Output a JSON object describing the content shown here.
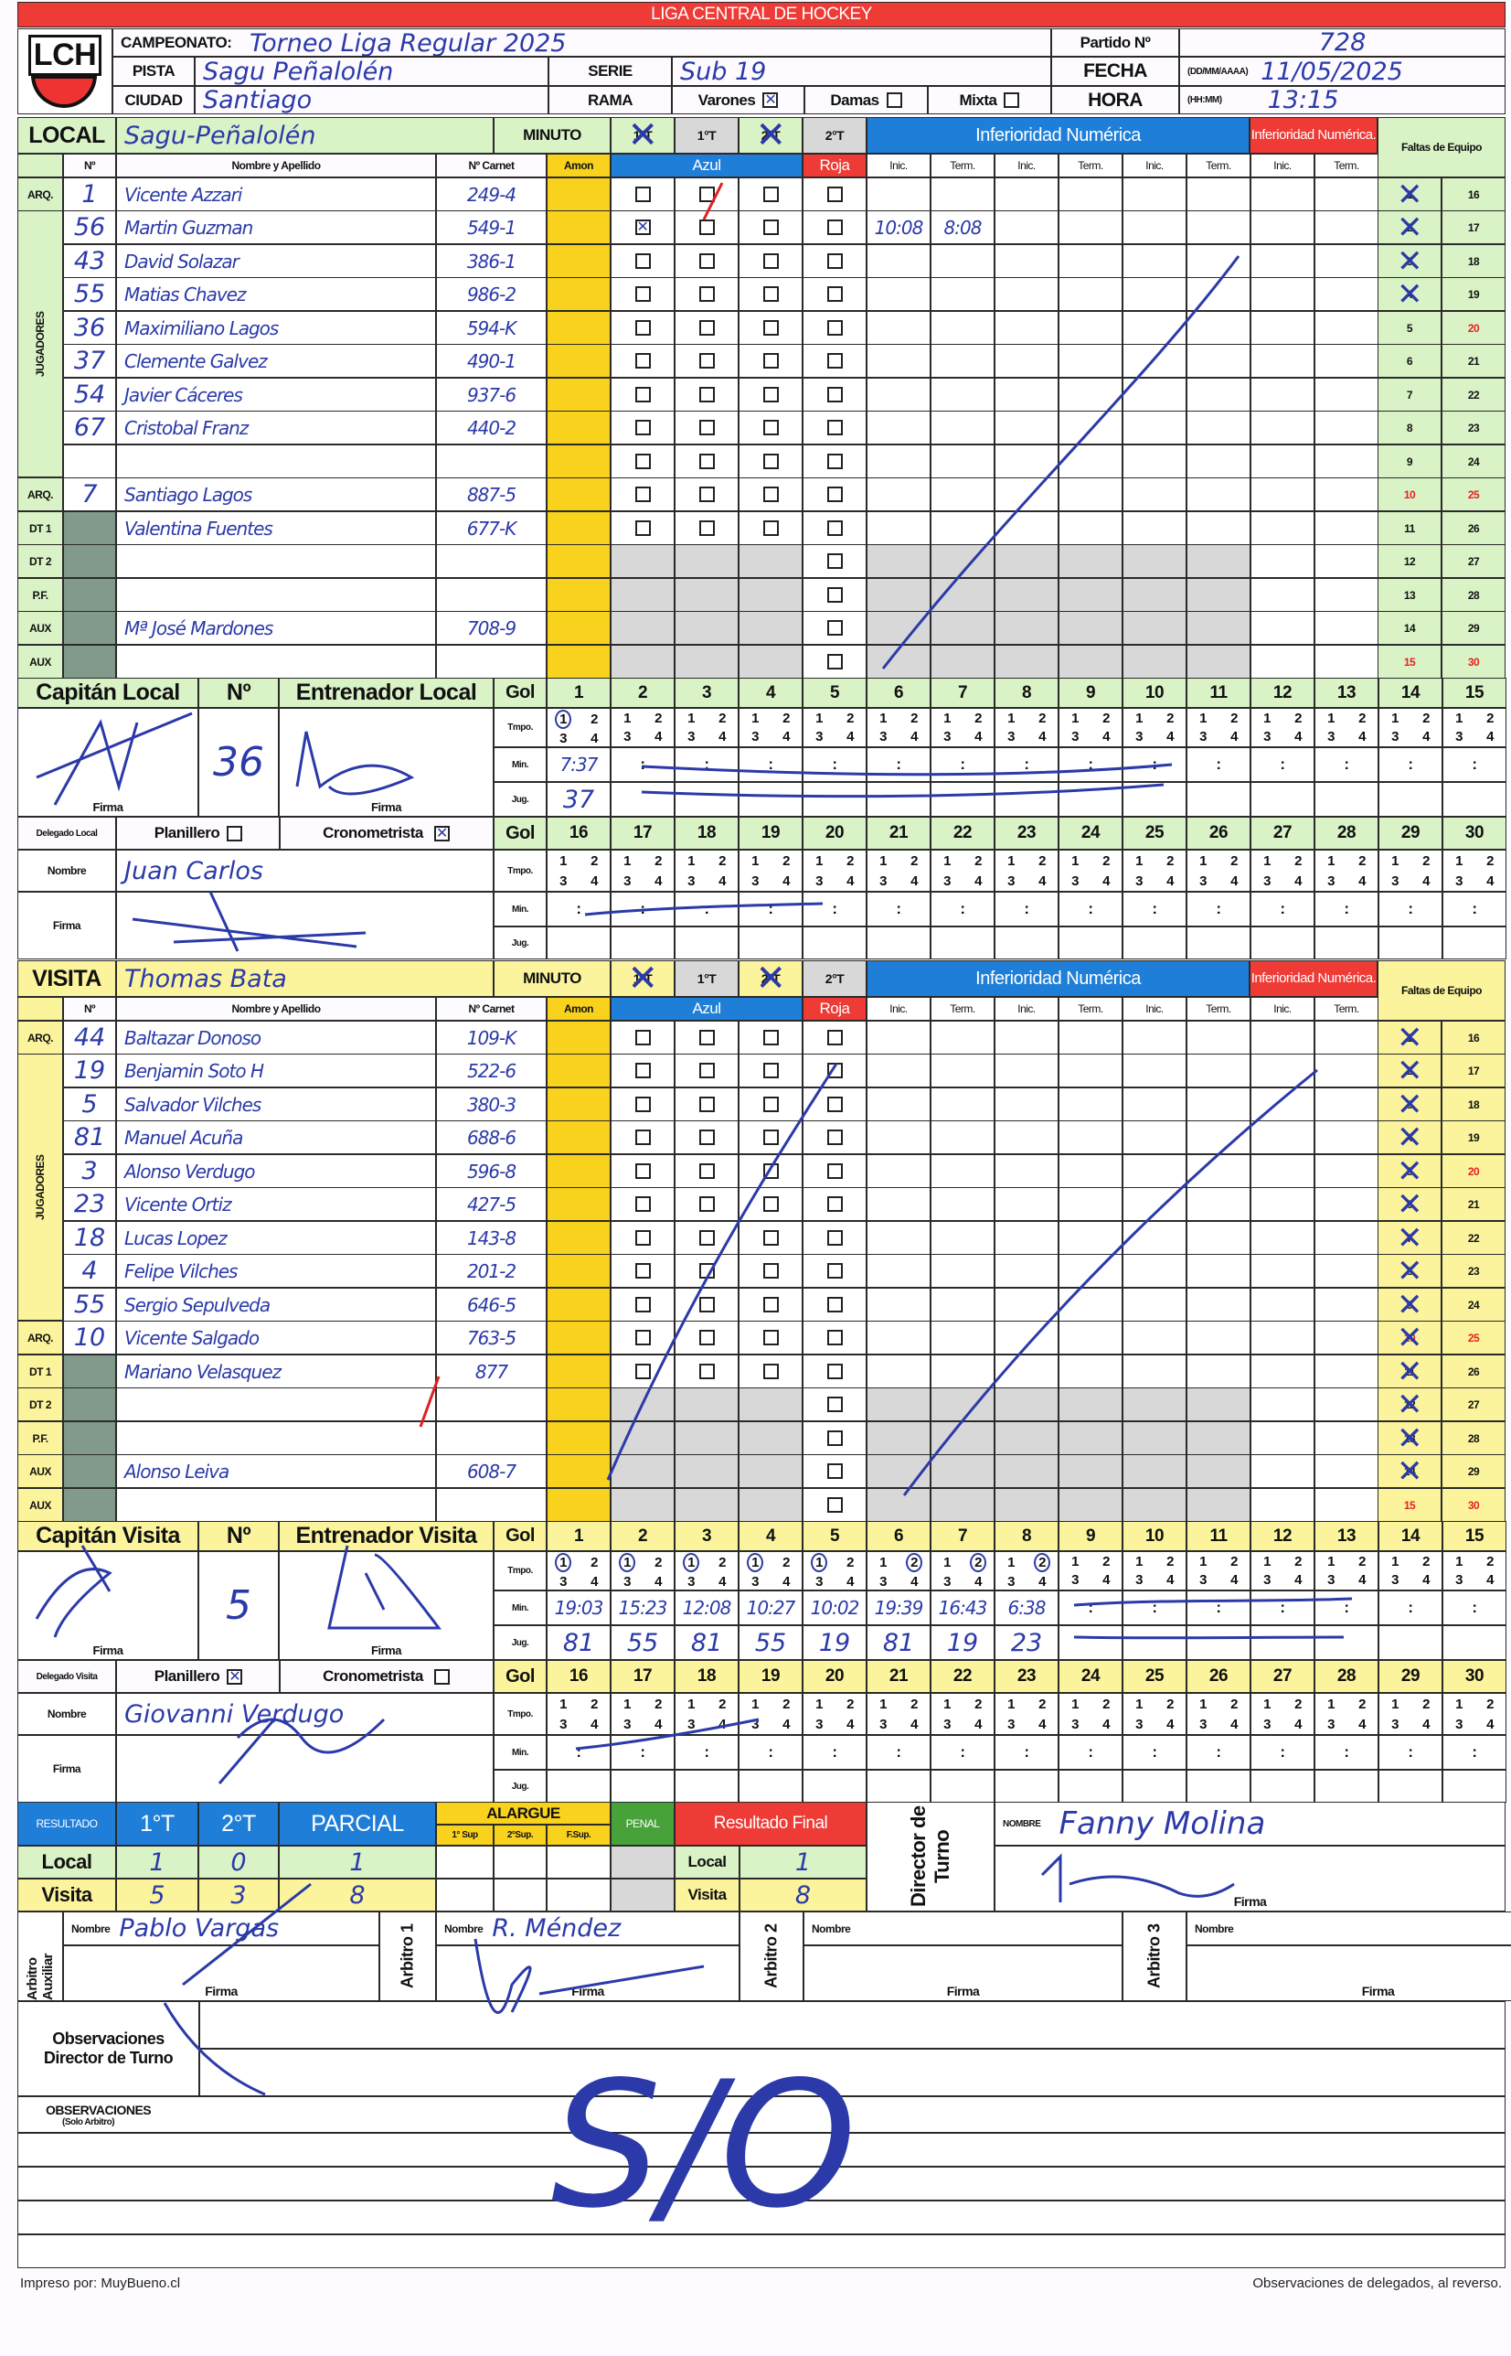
{
  "header": {
    "league_title": "LIGA CENTRAL DE HOCKEY",
    "logo_text": "LCH",
    "campeonato_label": "CAMPEONATO:",
    "campeonato": "Torneo Liga Regular 2025",
    "partido_label": "Partido Nº",
    "partido": "728",
    "pista_label": "PISTA",
    "pista": "Sagu Peñalolén",
    "serie_label": "SERIE",
    "serie": "Sub 19",
    "fecha_label": "FECHA",
    "fecha_format": "(DD/MM/AAAA)",
    "fecha": "11/05/2025",
    "ciudad_label": "CIUDAD",
    "ciudad": "Santiago",
    "rama_label": "RAMA",
    "rama_options": [
      {
        "label": "Varones",
        "checked": true
      },
      {
        "label": "Damas",
        "checked": false
      },
      {
        "label": "Mixta",
        "checked": false
      }
    ],
    "hora_label": "HORA",
    "hora_format": "(HH:MM)",
    "hora": "13:15"
  },
  "labels": {
    "minuto": "MINUTO",
    "inferioridad": "Inferioridad Numérica",
    "inferioridad_red": "Inferioridad Numérica.",
    "faltas": "Faltas de Equipo",
    "num": "Nº",
    "nombre_apellido": "Nombre y Apellido",
    "carnet": "Nº Carnet",
    "amon": "Amon",
    "azul": "Azul",
    "roja": "Roja",
    "inf_cols": [
      "Inic.",
      "Term.",
      "Inic.",
      "Term.",
      "Inic.",
      "Term.",
      "Inic.",
      "Term."
    ],
    "jugadores": "JUGADORES",
    "gol": "Gol",
    "tmpo": "Tmpo.",
    "min": "Min.",
    "jug": "Jug.",
    "firma": "Firma",
    "nombre": "Nombre",
    "planillero": "Planillero",
    "cronometrista": "Cronometrista",
    "tmpo_digits": [
      "1",
      "2",
      "3",
      "4"
    ],
    "min_placeholder": ":",
    "goal_numbers_a": [
      "1",
      "2",
      "3",
      "4",
      "5",
      "6",
      "7",
      "8",
      "9",
      "10",
      "11",
      "12",
      "13",
      "14",
      "15"
    ],
    "goal_numbers_b": [
      "16",
      "17",
      "18",
      "19",
      "20",
      "21",
      "22",
      "23",
      "24",
      "25",
      "26",
      "27",
      "28",
      "29",
      "30"
    ],
    "fouls_left": [
      "1",
      "2",
      "3",
      "4",
      "5",
      "6",
      "7",
      "8",
      "9",
      "10",
      "11",
      "12",
      "13",
      "14",
      "15"
    ],
    "fouls_right": [
      "16",
      "17",
      "18",
      "19",
      "20",
      "21",
      "22",
      "23",
      "24",
      "25",
      "26",
      "27",
      "28",
      "29",
      "30"
    ]
  },
  "local": {
    "label": "LOCAL",
    "team": "Sagu-Peñalolén",
    "periods": [
      {
        "label": "1°T",
        "crossed": true
      },
      {
        "label": "1°T",
        "crossed": false
      },
      {
        "label": "2°T",
        "crossed": true
      },
      {
        "label": "2°T",
        "crossed": false
      }
    ],
    "players": [
      {
        "role": "ARQ.",
        "num": "1",
        "name": "Vicente Azzari",
        "carnet": "249-4",
        "azul": [
          false,
          false,
          false
        ],
        "roja": false
      },
      {
        "role": "",
        "num": "56",
        "name": "Martin Guzman",
        "carnet": "549-1",
        "azul": [
          true,
          false,
          false
        ],
        "roja": false,
        "inf": [
          "10:08",
          "8:08",
          "",
          "",
          "",
          "",
          "",
          ""
        ]
      },
      {
        "role": "",
        "num": "43",
        "name": "David Solazar",
        "carnet": "386-1",
        "azul": [
          false,
          false,
          false
        ],
        "roja": false
      },
      {
        "role": "",
        "num": "55",
        "name": "Matias Chavez",
        "carnet": "986-2",
        "azul": [
          false,
          false,
          false
        ],
        "roja": false
      },
      {
        "role": "",
        "num": "36",
        "name": "Maximiliano Lagos",
        "carnet": "594-K",
        "azul": [
          false,
          false,
          false
        ],
        "roja": false
      },
      {
        "role": "",
        "num": "37",
        "name": "Clemente Galvez",
        "carnet": "490-1",
        "azul": [
          false,
          false,
          false
        ],
        "roja": false
      },
      {
        "role": "",
        "num": "54",
        "name": "Javier Cáceres",
        "carnet": "937-6",
        "azul": [
          false,
          false,
          false
        ],
        "roja": false
      },
      {
        "role": "",
        "num": "67",
        "name": "Cristobal Franz",
        "carnet": "440-2",
        "azul": [
          false,
          false,
          false
        ],
        "roja": false
      },
      {
        "role": "",
        "num": "",
        "name": "",
        "carnet": "",
        "azul": [
          false,
          false,
          false
        ],
        "roja": false
      },
      {
        "role": "ARQ.",
        "num": "7",
        "name": "Santiago Lagos",
        "carnet": "887-5",
        "azul": [
          false,
          false,
          false
        ],
        "roja": false
      },
      {
        "role": "DT 1",
        "num": "",
        "name": "Valentina Fuentes",
        "carnet": "677-K",
        "azul": [
          false,
          false,
          false
        ],
        "roja": false
      },
      {
        "role": "DT 2",
        "num": "",
        "name": "",
        "carnet": "",
        "roja": false
      },
      {
        "role": "P.F.",
        "num": "",
        "name": "",
        "carnet": "",
        "roja": false
      },
      {
        "role": "AUX",
        "num": "",
        "name": "Mª José Mardones",
        "carnet": "708-9",
        "roja": false
      },
      {
        "role": "AUX",
        "num": "",
        "name": "",
        "carnet": "",
        "roja": false
      }
    ],
    "fouls_crossed": [
      1,
      2,
      3,
      4
    ],
    "captain_label": "Capitán Local",
    "captain_number": "36",
    "coach_label": "Entrenador Local",
    "delegado_label": "Delegado Local",
    "delegado_nombre": "Juan Carlos",
    "planillero_checked": false,
    "cronometrista_checked": true,
    "goals": [
      {
        "period": 1,
        "min": "7:37",
        "player": "37"
      }
    ]
  },
  "visita": {
    "label": "VISITA",
    "team": "Thomas Bata",
    "periods": [
      {
        "label": "1°T",
        "crossed": true
      },
      {
        "label": "1°T",
        "crossed": false
      },
      {
        "label": "2°T",
        "crossed": true
      },
      {
        "label": "2°T",
        "crossed": false
      }
    ],
    "players": [
      {
        "role": "ARQ.",
        "num": "44",
        "name": "Baltazar Donoso",
        "carnet": "109-K",
        "azul": [
          false,
          false,
          false
        ],
        "roja": false
      },
      {
        "role": "",
        "num": "19",
        "name": "Benjamin Soto H",
        "carnet": "522-6",
        "azul": [
          false,
          false,
          false
        ],
        "roja": false
      },
      {
        "role": "",
        "num": "5",
        "name": "Salvador Vilches",
        "carnet": "380-3",
        "azul": [
          false,
          false,
          false
        ],
        "roja": false
      },
      {
        "role": "",
        "num": "81",
        "name": "Manuel Acuña",
        "carnet": "688-6",
        "azul": [
          false,
          false,
          false
        ],
        "roja": false
      },
      {
        "role": "",
        "num": "3",
        "name": "Alonso Verdugo",
        "carnet": "596-8",
        "azul": [
          false,
          false,
          false
        ],
        "roja": false
      },
      {
        "role": "",
        "num": "23",
        "name": "Vicente Ortiz",
        "carnet": "427-5",
        "azul": [
          false,
          false,
          false
        ],
        "roja": false
      },
      {
        "role": "",
        "num": "18",
        "name": "Lucas Lopez",
        "carnet": "143-8",
        "azul": [
          false,
          false,
          false
        ],
        "roja": false
      },
      {
        "role": "",
        "num": "4",
        "name": "Felipe Vilches",
        "carnet": "201-2",
        "azul": [
          false,
          false,
          false
        ],
        "roja": false
      },
      {
        "role": "",
        "num": "55",
        "name": "Sergio Sepulveda",
        "carnet": "646-5",
        "azul": [
          false,
          false,
          false
        ],
        "roja": false
      },
      {
        "role": "ARQ.",
        "num": "10",
        "name": "Vicente Salgado",
        "carnet": "763-5",
        "azul": [
          false,
          false,
          false
        ],
        "roja": false
      },
      {
        "role": "DT 1",
        "num": "",
        "name": "Mariano Velasquez",
        "carnet": "877",
        "azul": [
          false,
          false,
          false
        ],
        "roja": false
      },
      {
        "role": "DT 2",
        "num": "",
        "name": "",
        "carnet": "",
        "roja": false
      },
      {
        "role": "P.F.",
        "num": "",
        "name": "",
        "carnet": "",
        "roja": false
      },
      {
        "role": "AUX",
        "num": "",
        "name": "Alonso Leiva",
        "carnet": "608-7",
        "roja": false
      },
      {
        "role": "AUX",
        "num": "",
        "name": "",
        "carnet": "",
        "roja": false
      }
    ],
    "fouls_crossed": [
      1,
      2,
      3,
      4,
      5,
      6,
      7,
      8,
      9,
      10,
      11,
      12,
      13,
      14
    ],
    "captain_label": "Capitán Visita",
    "captain_number": "5",
    "coach_label": "Entrenador Visita",
    "delegado_label": "Delegado Visita",
    "delegado_nombre": "Giovanni Verdugo",
    "planillero_checked": true,
    "cronometrista_checked": false,
    "goals": [
      {
        "period": 1,
        "min": "19:03",
        "player": "81"
      },
      {
        "period": 1,
        "min": "15:23",
        "player": "55"
      },
      {
        "period": 1,
        "min": "12:08",
        "player": "81"
      },
      {
        "period": 1,
        "min": "10:27",
        "player": "55"
      },
      {
        "period": 1,
        "min": "10:02",
        "player": "19"
      },
      {
        "period": 2,
        "min": "19:39",
        "player": "81"
      },
      {
        "period": 2,
        "min": "16:43",
        "player": "19"
      },
      {
        "period": 2,
        "min": "6:38",
        "player": "23"
      }
    ]
  },
  "result": {
    "resultado_label": "RESULTADO",
    "t1_label": "1°T",
    "t2_label": "2°T",
    "parcial_label": "PARCIAL",
    "alargue_label": "ALARGUE",
    "sup1_label": "1° Sup",
    "sup2_label": "2°Sup.",
    "fsup_label": "F.Sup.",
    "penal_label": "PENAL",
    "final_label": "Resultado Final",
    "local_label": "Local",
    "visita_label": "Visita",
    "local": {
      "t1": "1",
      "t2": "0",
      "parcial": "1",
      "final": "1"
    },
    "visita": {
      "t1": "5",
      "t2": "3",
      "parcial": "8",
      "final": "8"
    },
    "director_label": "Director de Turno",
    "director_nombre_label": "NOMBRE",
    "director_nombre": "Fanny Molina",
    "director_firma_label": "Firma"
  },
  "referees": [
    {
      "label": "Arbitro Auxiliar",
      "nombre_label": "Nombre",
      "nombre": "Pablo Vargas",
      "firma_label": "Firma"
    },
    {
      "label": "Arbitro 1",
      "nombre_label": "Nombre",
      "nombre": "R. Méndez",
      "firma_label": "Firma"
    },
    {
      "label": "Arbitro 2",
      "nombre_label": "Nombre",
      "nombre": "",
      "firma_label": "Firma"
    },
    {
      "label": "Arbitro 3",
      "nombre_label": "Nombre",
      "nombre": "",
      "firma_label": "Firma"
    }
  ],
  "observations": {
    "director_label": "Observaciones Director de Turno",
    "arbitro_label": "OBSERVACIONES",
    "arbitro_sub": "(Solo Arbitro)",
    "text": "S/O"
  },
  "footer": {
    "printed_by": "Impreso por: MuyBueno.cl",
    "note": "Observaciones de delegados, al reverso."
  },
  "colors": {
    "header_red": "#ee3b36",
    "blue": "#1f7fd8",
    "local_bg": "#d9f2c6",
    "visita_bg": "#fbf49c",
    "amon_yellow": "#f8d21c",
    "ink": "#2b3aa8"
  }
}
